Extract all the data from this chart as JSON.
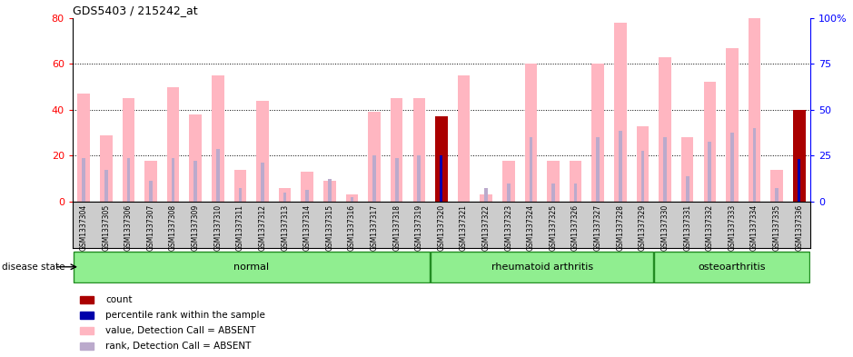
{
  "title": "GDS5403 / 215242_at",
  "samples": [
    "GSM1337304",
    "GSM1337305",
    "GSM1337306",
    "GSM1337307",
    "GSM1337308",
    "GSM1337309",
    "GSM1337310",
    "GSM1337311",
    "GSM1337312",
    "GSM1337313",
    "GSM1337314",
    "GSM1337315",
    "GSM1337316",
    "GSM1337317",
    "GSM1337318",
    "GSM1337319",
    "GSM1337320",
    "GSM1337321",
    "GSM1337322",
    "GSM1337323",
    "GSM1337324",
    "GSM1337325",
    "GSM1337326",
    "GSM1337327",
    "GSM1337328",
    "GSM1337329",
    "GSM1337330",
    "GSM1337331",
    "GSM1337332",
    "GSM1337333",
    "GSM1337334",
    "GSM1337335",
    "GSM1337336"
  ],
  "pink_values": [
    47,
    29,
    45,
    18,
    50,
    38,
    55,
    14,
    44,
    6,
    13,
    9,
    3,
    39,
    45,
    45,
    0,
    55,
    3,
    18,
    60,
    18,
    18,
    60,
    78,
    33,
    63,
    28,
    52,
    67,
    80,
    14,
    0
  ],
  "pink_rank_values": [
    19,
    14,
    19,
    9,
    19,
    18,
    23,
    6,
    17,
    4,
    5,
    10,
    2,
    20,
    19,
    20,
    0,
    0,
    6,
    8,
    28,
    8,
    8,
    28,
    31,
    22,
    28,
    11,
    26,
    30,
    32,
    6,
    0
  ],
  "red_values": [
    0,
    0,
    0,
    0,
    0,
    0,
    0,
    0,
    0,
    0,
    0,
    0,
    0,
    0,
    0,
    0,
    37,
    0,
    0,
    0,
    0,
    0,
    0,
    0,
    0,
    0,
    0,
    0,
    0,
    0,
    0,
    0,
    40
  ],
  "blue_values_pct": [
    0,
    0,
    0,
    0,
    0,
    0,
    0,
    0,
    0,
    0,
    0,
    0,
    0,
    0,
    0,
    0,
    25,
    0,
    0,
    0,
    0,
    0,
    0,
    0,
    0,
    0,
    0,
    0,
    0,
    0,
    0,
    0,
    23
  ],
  "ylim_left": [
    0,
    80
  ],
  "ylim_right": [
    0,
    100
  ],
  "yticks_left": [
    0,
    20,
    40,
    60,
    80
  ],
  "yticks_right": [
    0,
    25,
    50,
    75,
    100
  ],
  "pink_bar_color": "#FFB6C1",
  "pink_rank_bar_color": "#BBAACC",
  "red_bar_color": "#AA0000",
  "blue_bar_color": "#0000AA",
  "plot_bg": "white",
  "xtick_bg": "#CCCCCC",
  "disease_groups": [
    {
      "label": "normal",
      "start": 0,
      "end": 16
    },
    {
      "label": "rheumatoid arthritis",
      "start": 16,
      "end": 26
    },
    {
      "label": "osteoarthritis",
      "start": 26,
      "end": 33
    }
  ],
  "disease_group_color": "#90EE90",
  "disease_group_border": "#228B22",
  "disease_state_label": "disease state",
  "legend_items": [
    {
      "label": "count",
      "color": "#AA0000"
    },
    {
      "label": "percentile rank within the sample",
      "color": "#0000AA"
    },
    {
      "label": "value, Detection Call = ABSENT",
      "color": "#FFB6C1"
    },
    {
      "label": "rank, Detection Call = ABSENT",
      "color": "#BBAACC"
    }
  ]
}
